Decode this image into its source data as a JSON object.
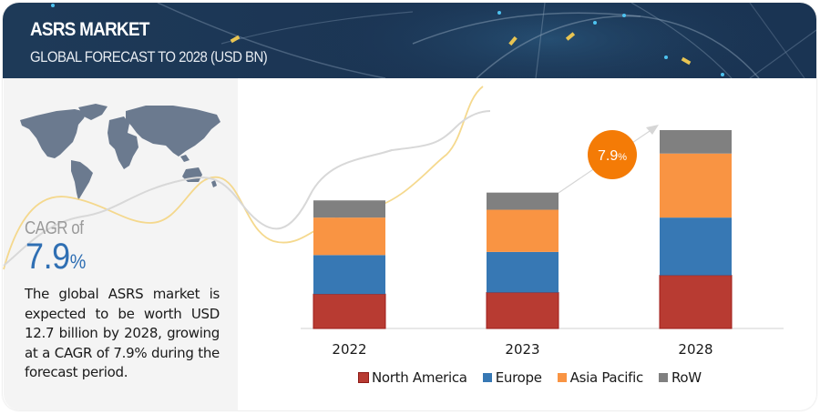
{
  "header": {
    "title": "ASRS MARKET",
    "subtitle": "GLOBAL FORECAST TO 2028 (USD BN)"
  },
  "left_panel": {
    "cagr_label": "CAGR of",
    "cagr_value": "7.9",
    "cagr_unit": "%",
    "map_icon": "world-map-icon",
    "summary": "The global ASRS market is expected to be worth USD 12.7 billion by 2028, growing at a CAGR of 7.9% during the forecast period."
  },
  "callout": {
    "label_value": "7.9",
    "label_unit": "%",
    "color": "#f47b06"
  },
  "chart_data": {
    "type": "bar",
    "stacked": true,
    "title": "ASRS Market, Global Forecast to 2028 (USD BN)",
    "xlabel": "",
    "ylabel": "USD BN",
    "categories": [
      "2022",
      "2023",
      "2028"
    ],
    "series": [
      {
        "name": "North America",
        "color": "#b83b32",
        "values": [
          2.2,
          2.3,
          3.4
        ]
      },
      {
        "name": "Europe",
        "color": "#3778b4",
        "values": [
          2.5,
          2.6,
          3.7
        ]
      },
      {
        "name": "Asia Pacific",
        "color": "#f99443",
        "values": [
          2.4,
          2.7,
          4.1
        ]
      },
      {
        "name": "RoW",
        "color": "#808080",
        "values": [
          1.1,
          1.1,
          1.5
        ]
      }
    ],
    "totals": [
      8.2,
      8.7,
      12.7
    ],
    "ylim": [
      0,
      13.5
    ],
    "grid": false,
    "legend_position": "bottom",
    "annotation": "7.9% CAGR"
  }
}
